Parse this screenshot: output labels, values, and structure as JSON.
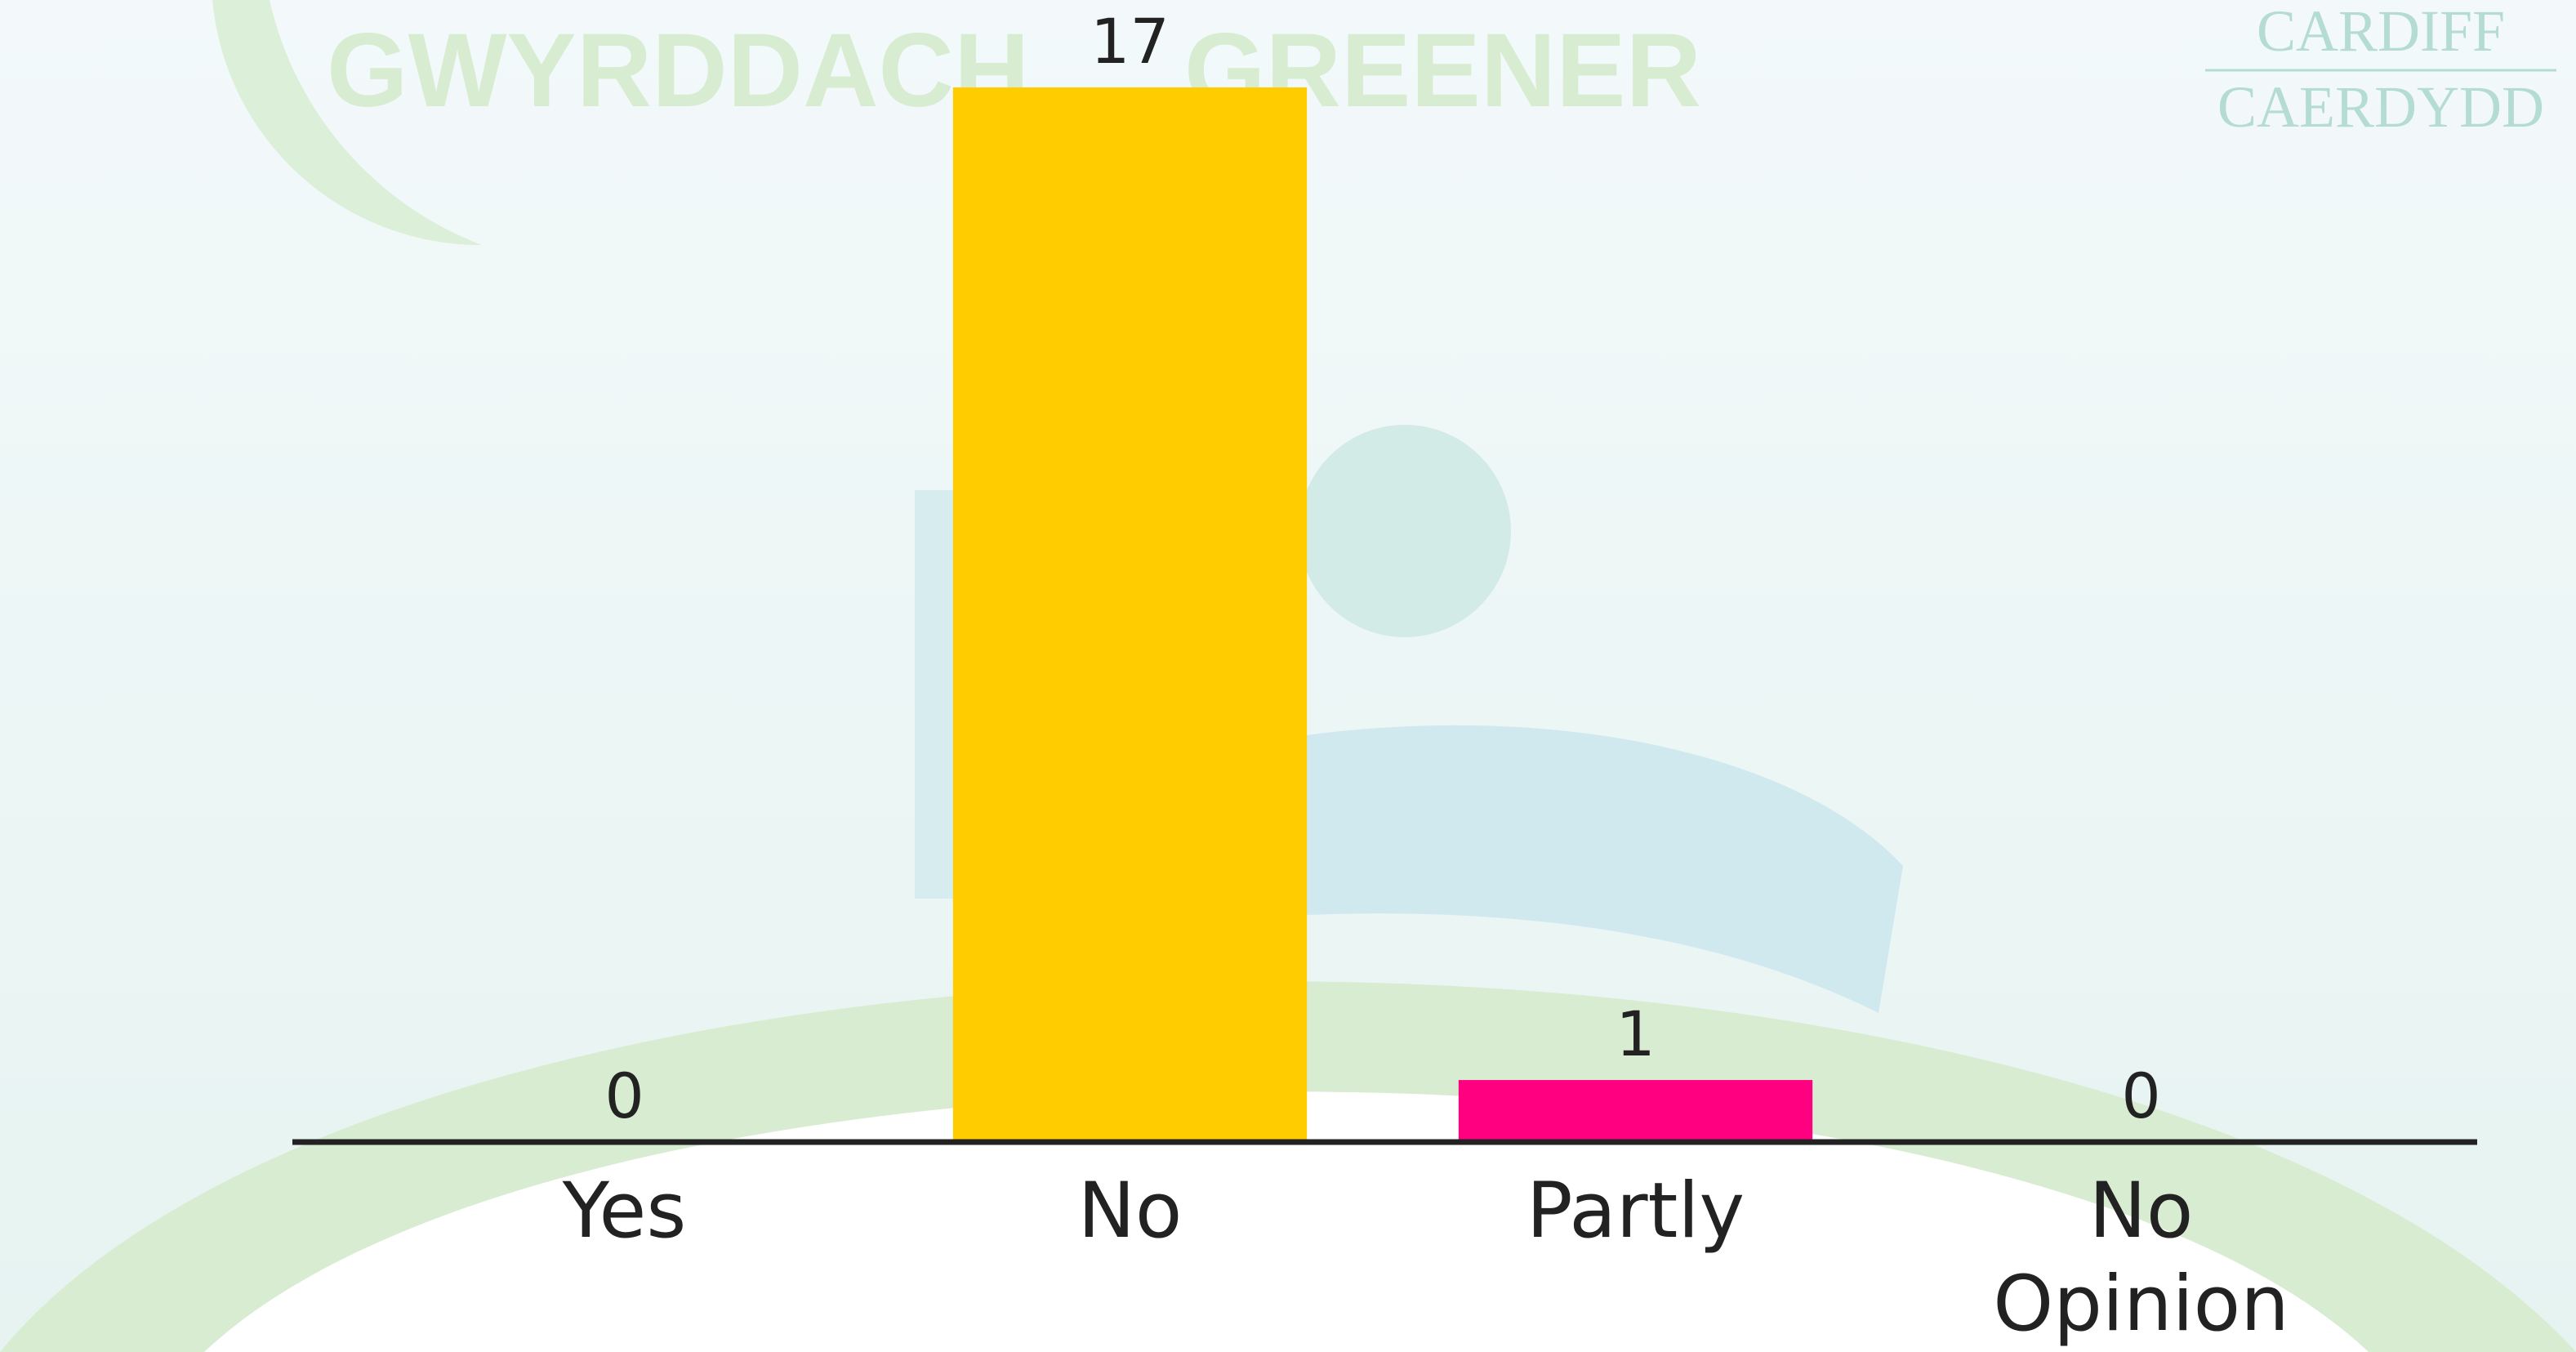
{
  "chart_data": {
    "type": "bar",
    "categories": [
      "Yes",
      "No",
      "Partly",
      "No Opinion"
    ],
    "values": [
      0,
      17,
      1,
      0
    ],
    "colors": [
      "#FFCC00",
      "#FFCC00",
      "#FF0080",
      "#FF0080"
    ],
    "ylim": [
      0,
      17
    ],
    "background_texts": [
      "GWYRDDACH",
      "GREENER",
      "CARDIFF",
      "CAERDYDD"
    ]
  }
}
